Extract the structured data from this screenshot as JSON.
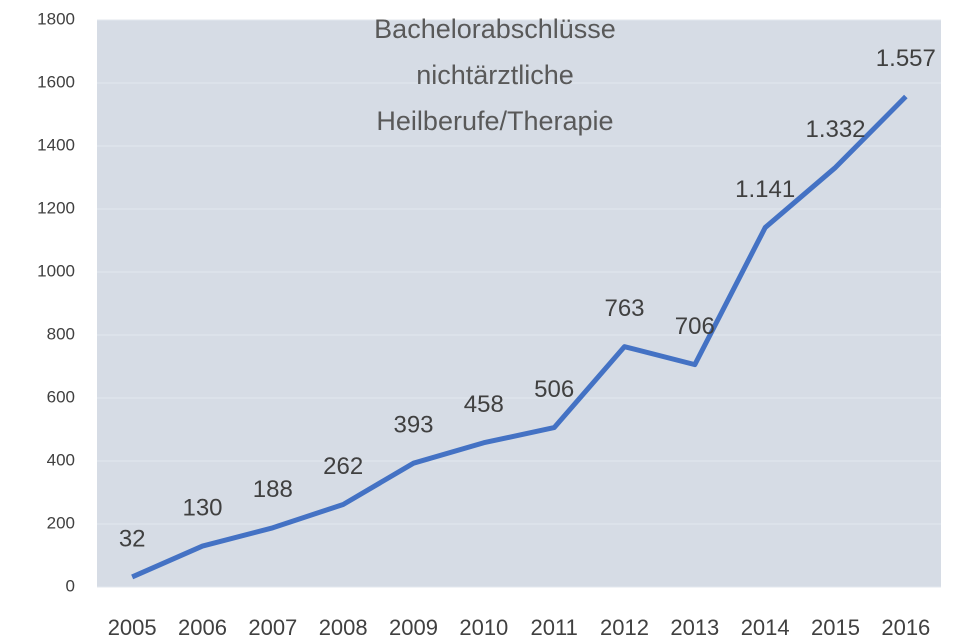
{
  "chart_data": {
    "type": "line",
    "title": "Bachelorabschlüsse nichtärztliche Heilberufe/Therapie",
    "categories": [
      "2005",
      "2006",
      "2007",
      "2008",
      "2009",
      "2010",
      "2011",
      "2012",
      "2013",
      "2014",
      "2015",
      "2016"
    ],
    "series": [
      {
        "name": "Bachelorabschlüsse",
        "color": "#4472c4",
        "values": [
          32,
          130,
          188,
          262,
          393,
          458,
          506,
          763,
          706,
          1141,
          1332,
          1557
        ],
        "value_labels": [
          "32",
          "130",
          "188",
          "262",
          "393",
          "458",
          "506",
          "763",
          "706",
          "1.141",
          "1.332",
          "1.557"
        ]
      }
    ],
    "ylim": [
      0,
      1800
    ],
    "yticks": [
      0,
      200,
      400,
      600,
      800,
      1000,
      1200,
      1400,
      1600,
      1800
    ],
    "grid": true
  }
}
